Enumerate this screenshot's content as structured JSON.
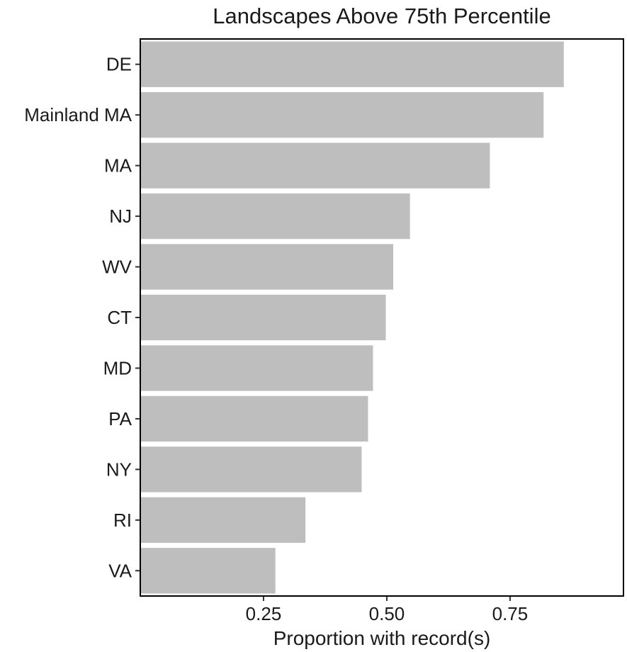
{
  "chart_data": {
    "type": "bar",
    "orientation": "horizontal",
    "title": "Landscapes Above 75th Percentile",
    "xlabel": "Proportion with record(s)",
    "ylabel": "",
    "categories": [
      "DE",
      "Mainland MA",
      "MA",
      "NJ",
      "WV",
      "CT",
      "MD",
      "PA",
      "NY",
      "RI",
      "VA"
    ],
    "values": [
      0.859,
      0.818,
      0.709,
      0.547,
      0.513,
      0.498,
      0.472,
      0.462,
      0.449,
      0.335,
      0.274
    ],
    "xlim": [
      0.0,
      0.98
    ],
    "xticks": [
      0.25,
      0.5,
      0.75
    ],
    "xtick_labels": [
      "0.25",
      "0.50",
      "0.75"
    ],
    "bar_color": "#bebebe",
    "grid": false,
    "legend": "none"
  }
}
